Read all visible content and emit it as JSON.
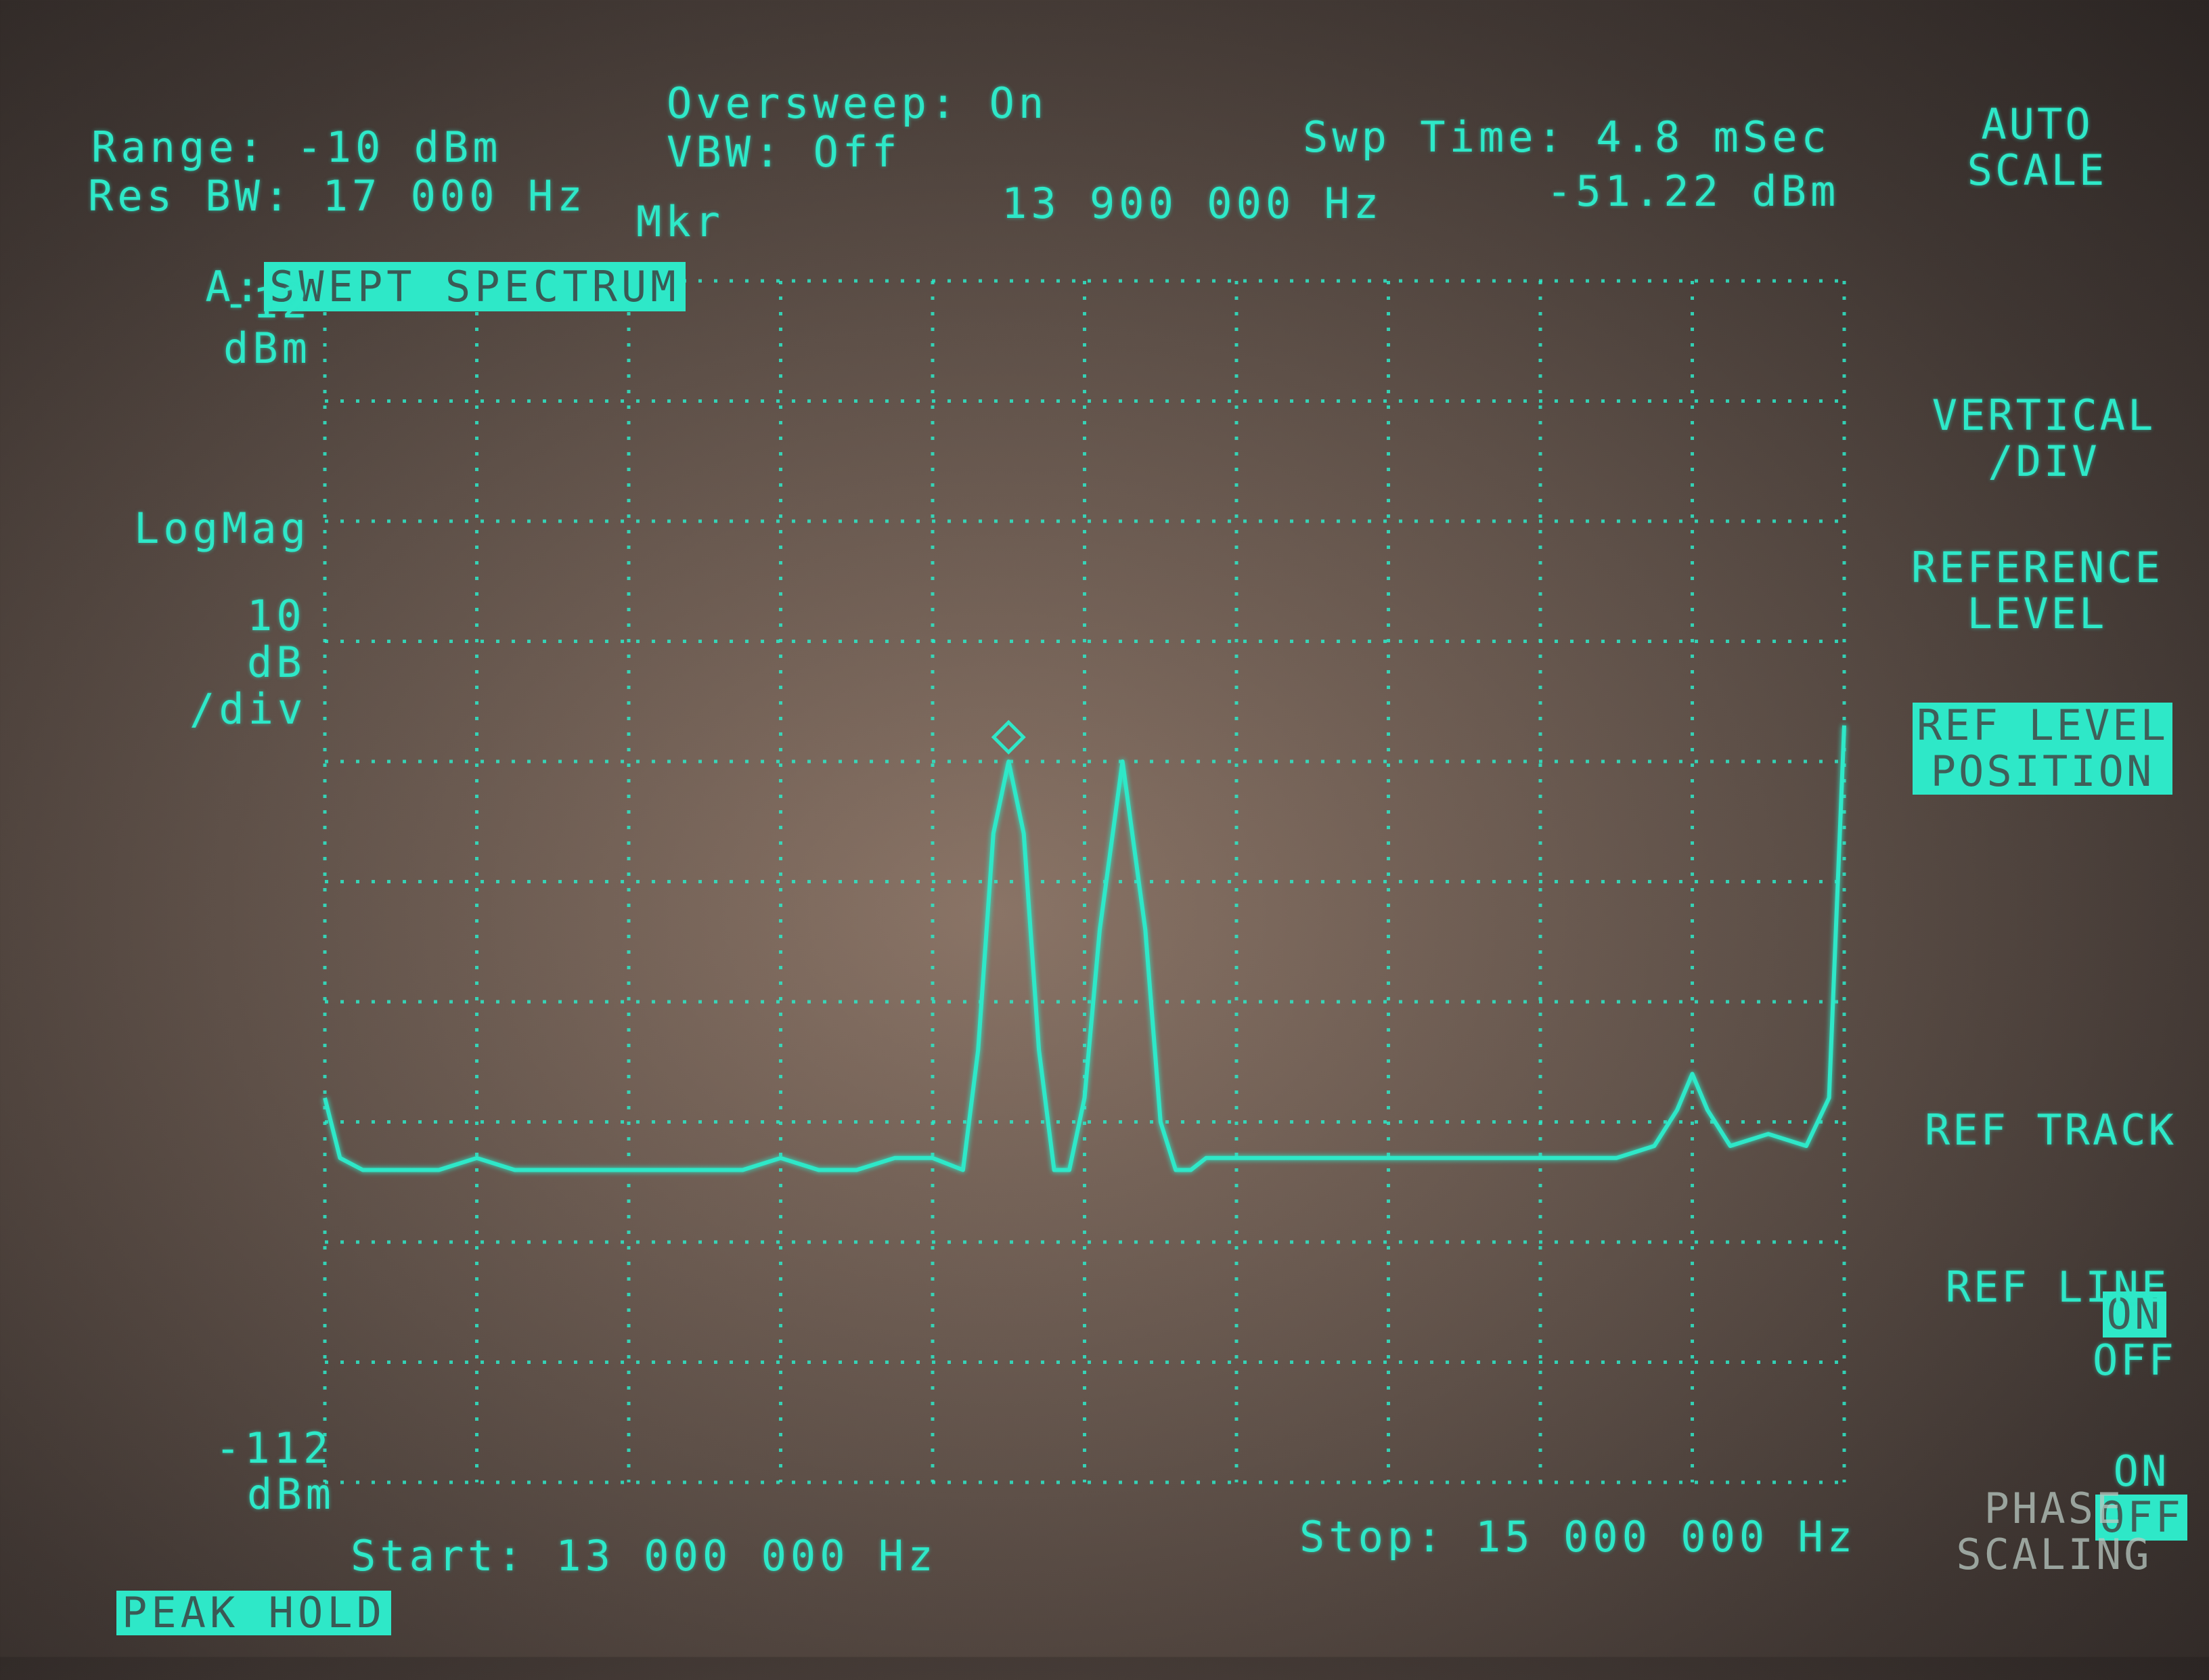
{
  "header": {
    "range": "Range: -10 dBm",
    "res_bw": "Res BW: 17 000 Hz",
    "oversweep": "Oversweep: On",
    "vbw": "VBW: Off",
    "swp_time": "Swp Time: 4.8 mSec",
    "channel_prefix": "A:",
    "channel_mode": "SWEPT SPECTRUM",
    "marker_label": "Mkr",
    "marker_freq": "13 900 000 Hz",
    "marker_level": "-51.22 dBm"
  },
  "scale": {
    "top_value": "-12",
    "top_unit": "dBm",
    "format": "LogMag",
    "per_div_value": "10",
    "per_div_unit": "dB",
    "per_div_suffix": "/div",
    "bottom_value": "-112",
    "bottom_unit": "dBm"
  },
  "footer": {
    "start": "Start: 13 000 000 Hz",
    "stop": "Stop: 15 000 000 Hz",
    "peak_hold": "PEAK HOLD"
  },
  "softkeys": {
    "auto_scale": "AUTO\nSCALE",
    "vertical_div": "VERTICAL\n/DIV",
    "reference_level": "REFERENCE\nLEVEL",
    "ref_level_position": "REF LEVEL\nPOSITION",
    "ref_track_label": "REF TRACK",
    "ref_track_on": "ON",
    "ref_track_off": "OFF",
    "ref_line_label": "REF LINE",
    "ref_line_on": "ON",
    "ref_line_off": "OFF",
    "phase_scaling": "PHASE\nSCALING"
  },
  "colors": {
    "trace": "#2ee8c8",
    "grid": "#2ee8c8",
    "background": "#5e5048"
  },
  "chart_data": {
    "type": "line",
    "xlabel": "",
    "ylabel": "",
    "xlim": [
      13000000,
      15000000
    ],
    "ylim": [
      -112,
      -12
    ],
    "grid": true,
    "marker": {
      "x": 13900000,
      "y": -51.22
    },
    "series": [
      {
        "x": [
          13000000,
          13020000,
          13050000,
          13100000,
          13150000,
          13200000,
          13250000,
          13300000,
          13350000,
          13400000,
          13450000,
          13500000,
          13550000,
          13600000,
          13650000,
          13700000,
          13750000,
          13800000,
          13840000,
          13860000,
          13880000,
          13900000,
          13920000,
          13940000,
          13960000,
          13980000,
          14000000,
          14020000,
          14050000,
          14080000,
          14100000,
          14120000,
          14140000,
          14160000,
          14200000,
          14250000,
          14300000,
          14350000,
          14400000,
          14450000,
          14500000,
          14550000,
          14600000,
          14650000,
          14700000,
          14750000,
          14780000,
          14800000,
          14820000,
          14850000,
          14900000,
          14950000,
          14980000,
          15000000
        ],
        "y": [
          -80,
          -85,
          -86,
          -86,
          -86,
          -85,
          -86,
          -86,
          -86,
          -86,
          -86,
          -86,
          -86,
          -85,
          -86,
          -86,
          -85,
          -85,
          -86,
          -76,
          -58,
          -52,
          -58,
          -76,
          -86,
          -86,
          -80,
          -66,
          -52,
          -66,
          -82,
          -86,
          -86,
          -85,
          -85,
          -85,
          -85,
          -85,
          -85,
          -85,
          -85,
          -85,
          -85,
          -85,
          -85,
          -84,
          -81,
          -78,
          -81,
          -84,
          -83,
          -84,
          -80,
          -49
        ]
      }
    ]
  }
}
